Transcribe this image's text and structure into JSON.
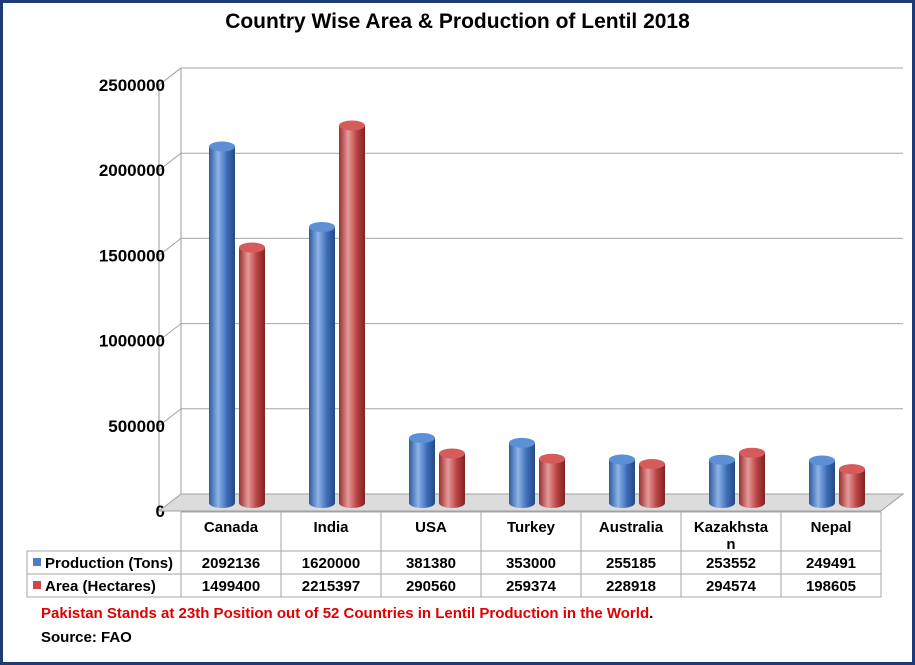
{
  "chart_data": {
    "type": "bar",
    "title": "Country Wise Area & Production of Lentil 2018",
    "categories": [
      "Canada",
      "India",
      "USA",
      "Turkey",
      "Australia",
      "Kazakhstan",
      "Nepal"
    ],
    "category_labels": [
      [
        "Canada"
      ],
      [
        "India"
      ],
      [
        "USA"
      ],
      [
        "Turkey"
      ],
      [
        "Australia"
      ],
      [
        "Kazakhsta",
        "n"
      ],
      [
        "Nepal"
      ]
    ],
    "series": [
      {
        "name": "Production (Tons)",
        "color": "#4a7ec8",
        "values": [
          2092136,
          1620000,
          381380,
          353000,
          255185,
          253552,
          249491
        ]
      },
      {
        "name": "Area (Hectares)",
        "color": "#c84a4a",
        "values": [
          1499400,
          2215397,
          290560,
          259374,
          228918,
          294574,
          198605
        ]
      }
    ],
    "table_values": [
      [
        "2092136",
        "1620000",
        "381380",
        "353000",
        "255185",
        "253552",
        "249491"
      ],
      [
        "1499400",
        "2215397",
        "290560",
        "259374",
        "228918",
        "294574",
        "198605"
      ]
    ],
    "y_ticks": [
      "0",
      "500000",
      "1000000",
      "1500000",
      "2000000",
      "2500000"
    ],
    "ylim": [
      0,
      2500000
    ],
    "grid": true,
    "legend": "data-table"
  },
  "footnote": {
    "text": "Pakistan Stands at 23th Position out of 52 Countries in Lentil Production in the World",
    "end": "."
  },
  "source": "Source: FAO"
}
